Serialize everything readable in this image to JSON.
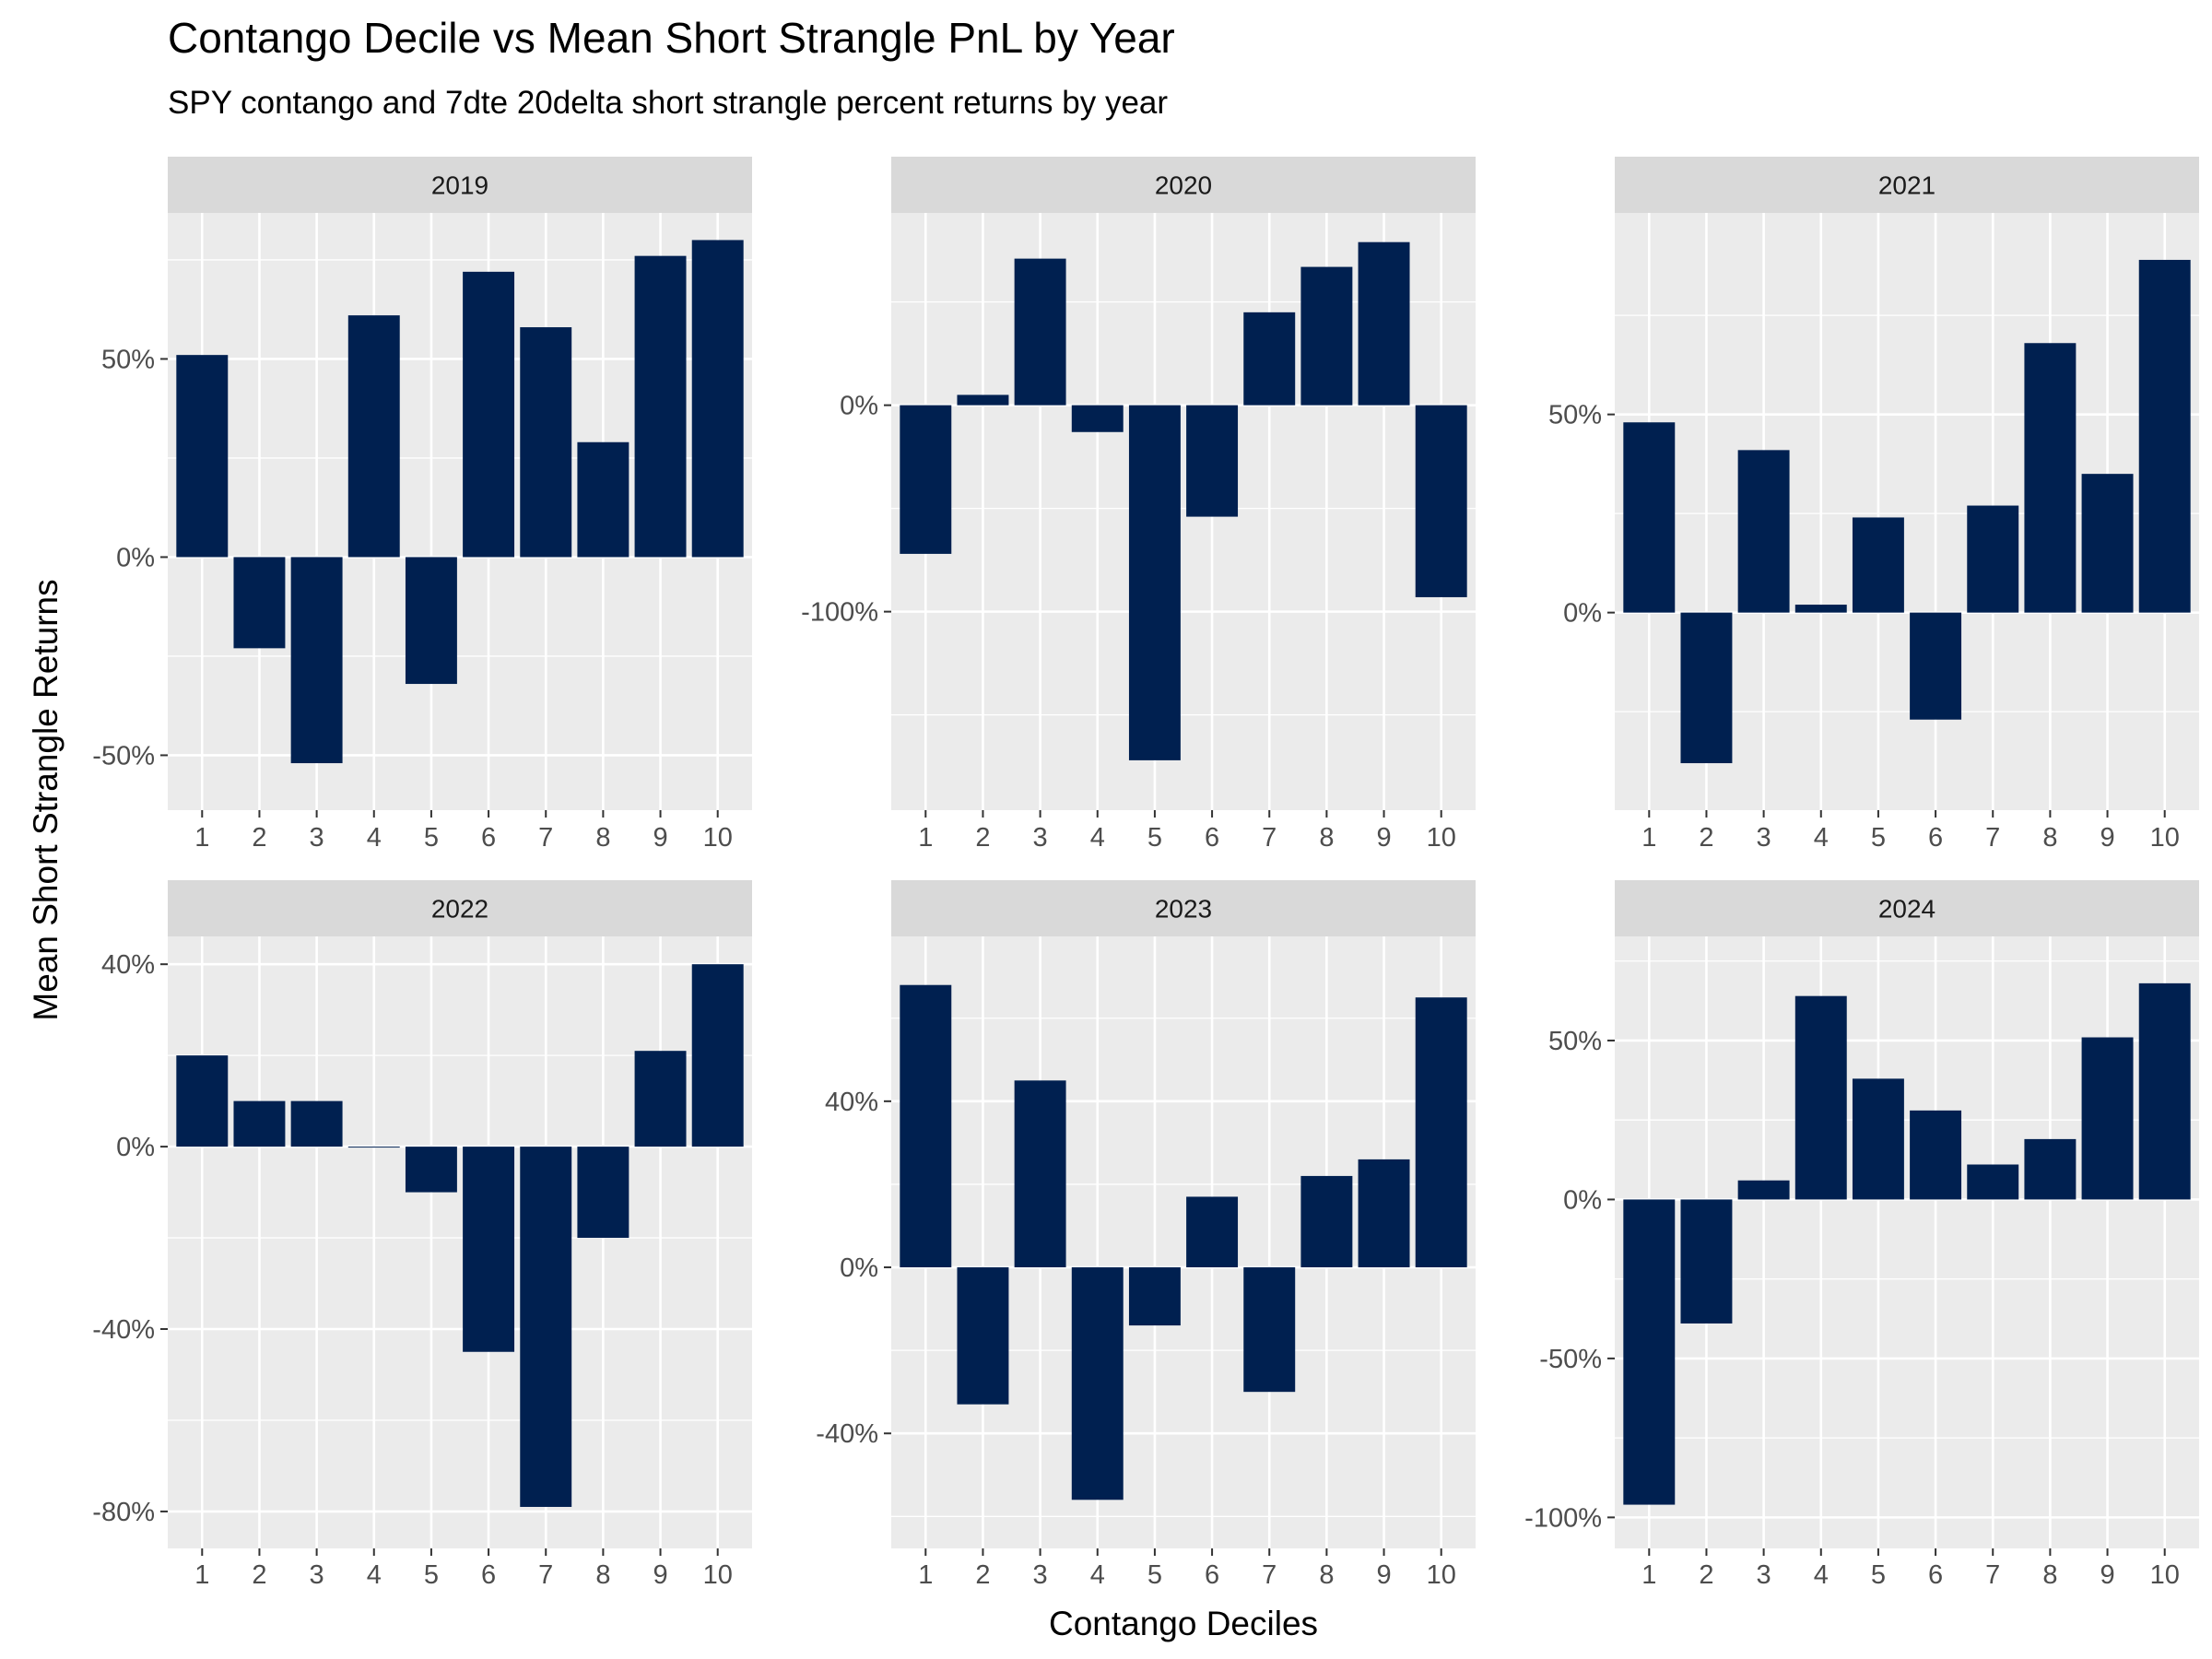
{
  "chart_data": {
    "type": "bar",
    "title": "Contango Decile vs Mean Short Strangle PnL by Year",
    "subtitle": "SPY contango and 7dte 20delta short strangle percent returns by year",
    "xlabel": "Contango Deciles",
    "ylabel": "Mean Short Strangle Returns",
    "categories": [
      "1",
      "2",
      "3",
      "4",
      "5",
      "6",
      "7",
      "8",
      "9",
      "10"
    ],
    "bar_color": "#002050",
    "panel_background": "#EBEBEB",
    "strip_background": "#D9D9D9",
    "grid": true,
    "facets": [
      {
        "name": "2019",
        "values": [
          51,
          -23,
          -52,
          61,
          -32,
          72,
          58,
          29,
          76,
          80
        ],
        "ylim": [
          -57,
          80
        ],
        "yticks": [
          -50,
          0,
          50
        ],
        "ytick_labels": [
          "-50%",
          "0%",
          "50%"
        ]
      },
      {
        "name": "2020",
        "values": [
          -72,
          5,
          71,
          -13,
          -172,
          -54,
          45,
          67,
          79,
          -93
        ],
        "ylim": [
          -183,
          80
        ],
        "yticks": [
          -100,
          0
        ],
        "ytick_labels": [
          "-100%",
          "0%"
        ]
      },
      {
        "name": "2021",
        "values": [
          48,
          -38,
          41,
          2,
          24,
          -27,
          27,
          68,
          35,
          89
        ],
        "ylim": [
          -43,
          94
        ],
        "yticks": [
          0,
          50
        ],
        "ytick_labels": [
          "0%",
          "50%"
        ]
      },
      {
        "name": "2022",
        "values": [
          20,
          10,
          10,
          0,
          -10,
          -45,
          -79,
          -20,
          21,
          40
        ],
        "ylim": [
          -82,
          40
        ],
        "yticks": [
          -80,
          -40,
          0,
          40
        ],
        "ytick_labels": [
          "-80%",
          "-40%",
          "0%",
          "40%"
        ]
      },
      {
        "name": "2023",
        "values": [
          68,
          -33,
          45,
          -56,
          -14,
          17,
          -30,
          22,
          26,
          65
        ],
        "ylim": [
          -61,
          73
        ],
        "yticks": [
          -40,
          0,
          40
        ],
        "ytick_labels": [
          "-40%",
          "0%",
          "40%"
        ]
      },
      {
        "name": "2024",
        "values": [
          -96,
          -39,
          6,
          64,
          38,
          28,
          11,
          19,
          51,
          68
        ],
        "ylim": [
          -101,
          74
        ],
        "yticks": [
          -100,
          -50,
          0,
          50
        ],
        "ytick_labels": [
          "-100%",
          "-50%",
          "0%",
          "50%"
        ]
      }
    ]
  }
}
